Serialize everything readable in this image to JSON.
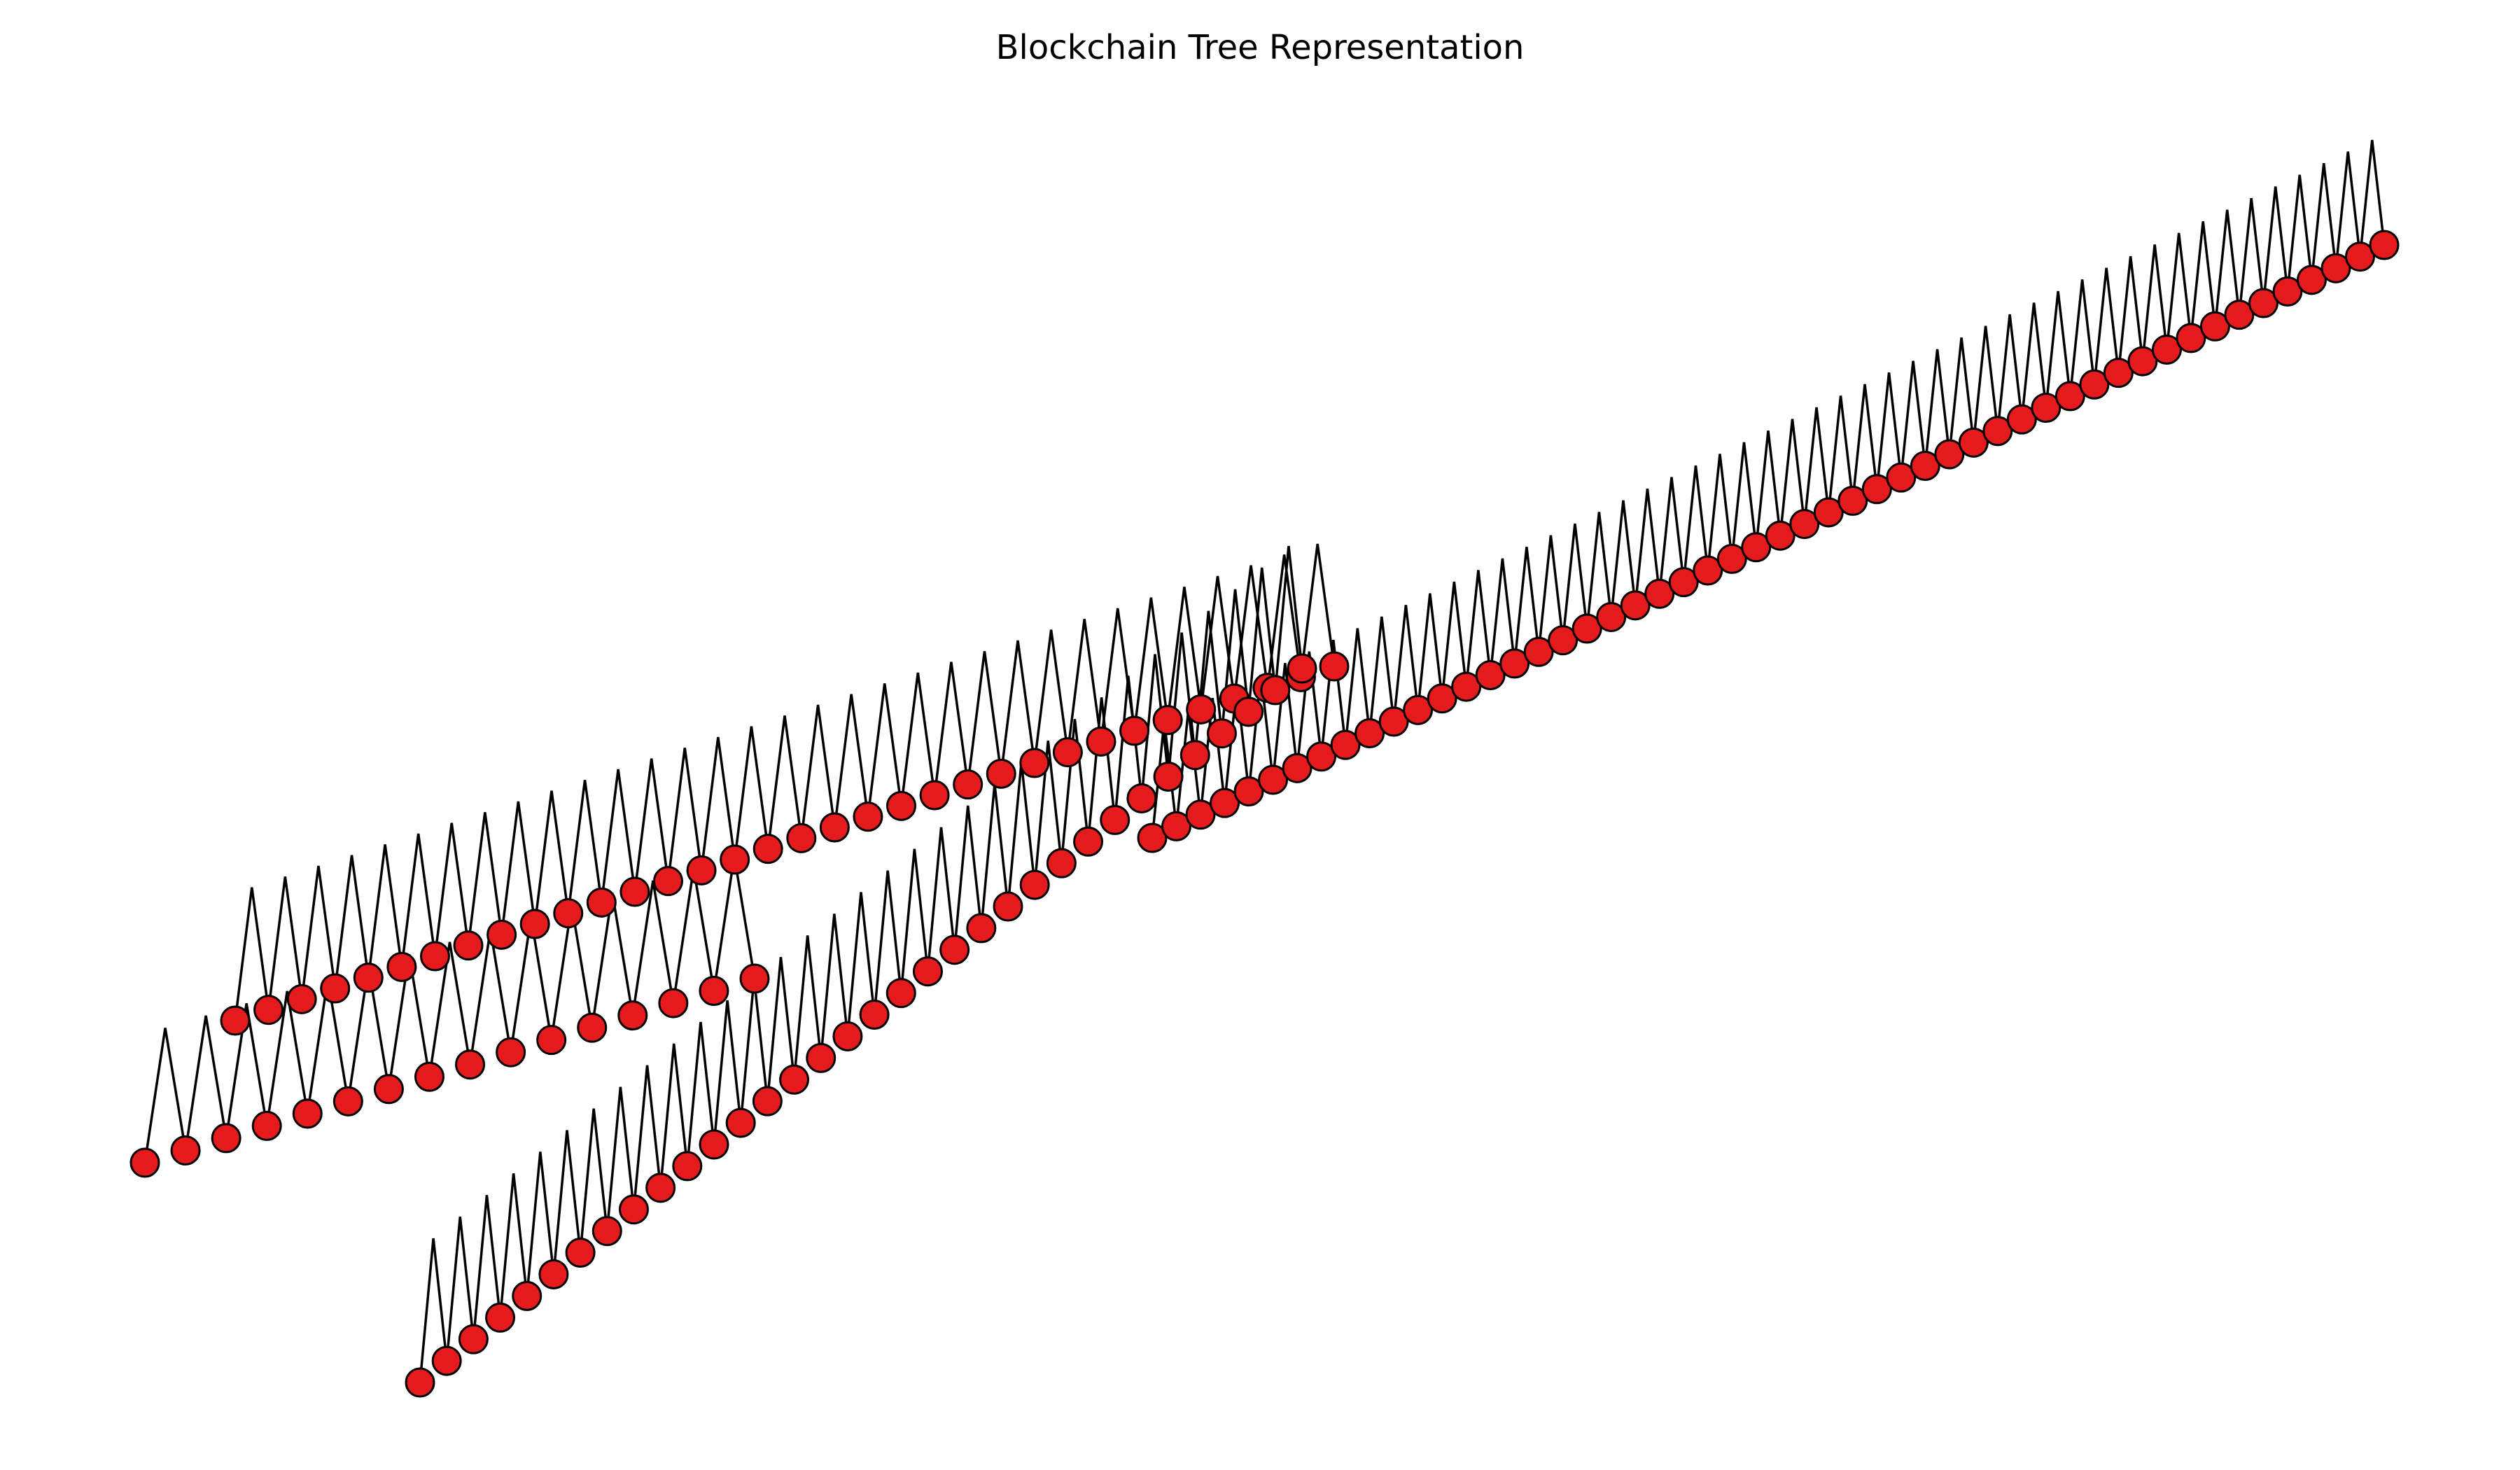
{
  "title": "Blockchain Tree Representation",
  "node_fill": "#e41a1c",
  "node_stroke": "#000000",
  "edge_color": "#000000",
  "chains": [
    {
      "name": "",
      "block_count": 16
    },
    {
      "name": "",
      "block_count": 34
    },
    {
      "name": "",
      "block_count": 34
    },
    {
      "name": "",
      "block_count": 52
    }
  ]
}
